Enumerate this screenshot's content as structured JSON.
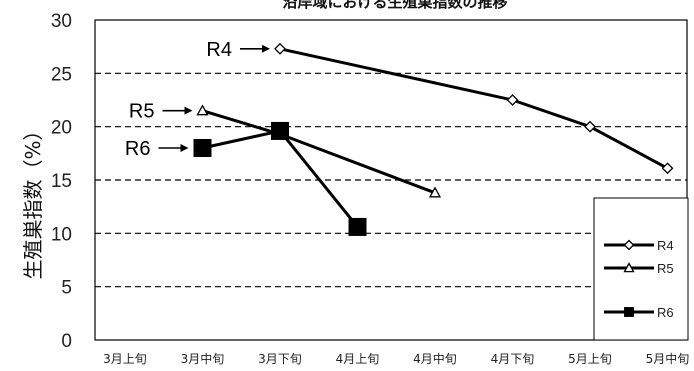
{
  "chart_data": {
    "type": "line",
    "title": "沿岸域における生殖巣指数の推移",
    "ylabel": "生殖巣指数（%）",
    "xlabel": "",
    "categories": [
      "3月上旬",
      "3月中旬",
      "3月下旬",
      "4月上旬",
      "4月中旬",
      "4月下旬",
      "5月上旬",
      "5月中旬"
    ],
    "ylim": [
      0,
      30
    ],
    "yticks": [
      0,
      5,
      10,
      15,
      20,
      25,
      30
    ],
    "grid": "dashed-horizontal",
    "legend_position": "right",
    "series": [
      {
        "name": "R4",
        "marker": "diamond-open",
        "values": [
          null,
          null,
          27.3,
          null,
          null,
          22.5,
          20.0,
          16.1
        ]
      },
      {
        "name": "R5",
        "marker": "triangle-open",
        "values": [
          null,
          21.5,
          19.3,
          null,
          13.8,
          null,
          null,
          null
        ]
      },
      {
        "name": "R6",
        "marker": "square-filled",
        "values": [
          null,
          18.0,
          19.6,
          10.6,
          null,
          null,
          null,
          null
        ]
      }
    ],
    "annotations": [
      {
        "series": "R4",
        "text": "R4",
        "arrow": "→"
      },
      {
        "series": "R5",
        "text": "R5",
        "arrow": "→"
      },
      {
        "series": "R6",
        "text": "R6",
        "arrow": "→"
      }
    ]
  }
}
